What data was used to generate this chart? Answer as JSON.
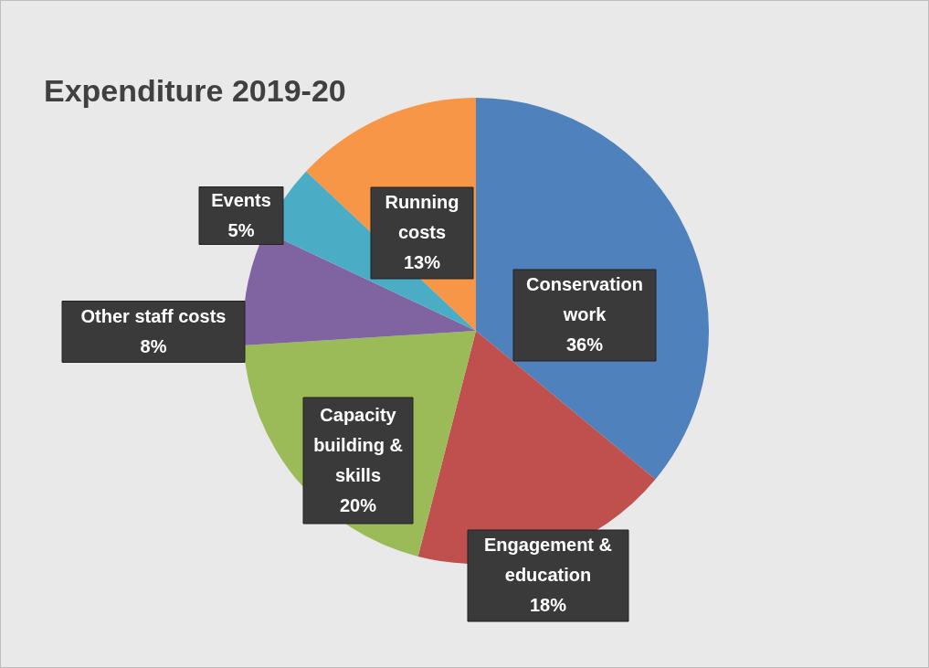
{
  "chart_data": {
    "type": "pie",
    "title": "Expenditure 2019-20",
    "categories": [
      "Conservation work",
      "Engagement & education",
      "Capacity building & skills",
      "Other staff costs",
      "Events",
      "Running costs"
    ],
    "values": [
      36,
      18,
      20,
      8,
      5,
      13
    ],
    "colors": [
      "#4f81bd",
      "#c0504d",
      "#9bbb59",
      "#8064a2",
      "#4bacc6",
      "#f79646"
    ],
    "value_labels": [
      "36%",
      "18%",
      "20%",
      "8%",
      "5%",
      "13%"
    ],
    "legend": false
  }
}
